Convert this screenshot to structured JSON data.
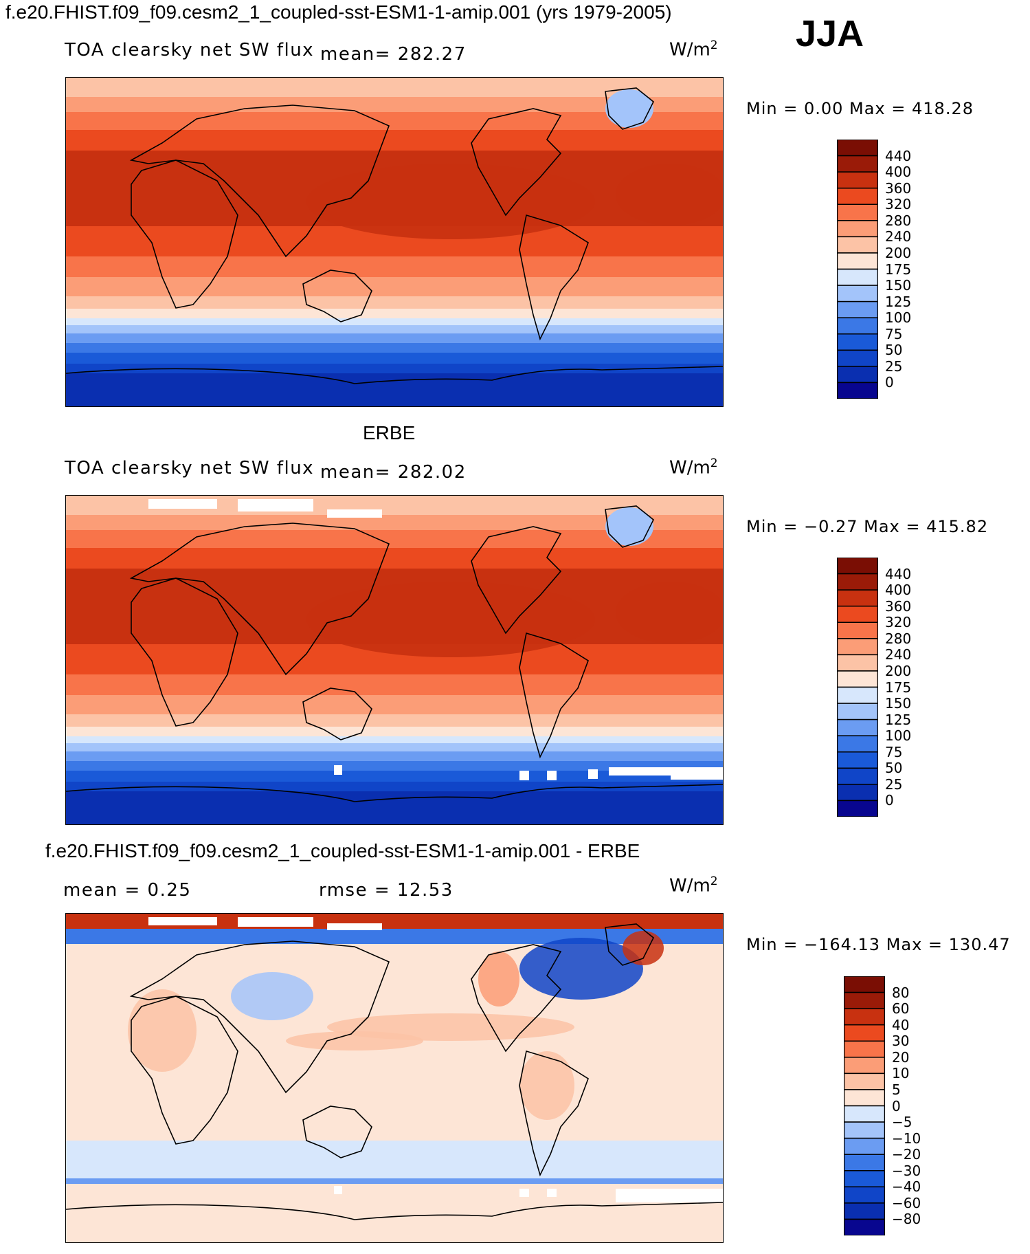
{
  "header": {
    "title": "f.e20.FHIST.f09_f09.cesm2_1_coupled-sst-ESM1-1-amip.001 (yrs 1979-2005)",
    "season": "JJA"
  },
  "panels": [
    {
      "id": "model",
      "heading": "",
      "field_label": "TOA clearsky net SW flux",
      "stat1": "mean= 282.27",
      "stat2": "",
      "units_base": "W/m",
      "units_exp": "2",
      "minmax": "Min =    0.00 Max = 418.28",
      "palette": "flux",
      "levels": [
        "440",
        "400",
        "360",
        "320",
        "280",
        "240",
        "200",
        "175",
        "150",
        "125",
        "100",
        "75",
        "50",
        "25",
        "0"
      ]
    },
    {
      "id": "obs",
      "heading": "ERBE",
      "field_label": "TOA clearsky net SW flux",
      "stat1": "mean= 282.02",
      "stat2": "",
      "units_base": "W/m",
      "units_exp": "2",
      "minmax": "Min =  −0.27 Max = 415.82",
      "palette": "flux",
      "levels": [
        "440",
        "400",
        "360",
        "320",
        "280",
        "240",
        "200",
        "175",
        "150",
        "125",
        "100",
        "75",
        "50",
        "25",
        "0"
      ]
    },
    {
      "id": "diff",
      "heading": "f.e20.FHIST.f09_f09.cesm2_1_coupled-sst-ESM1-1-amip.001 - ERBE",
      "field_label": "",
      "stat1": "mean =    0.25",
      "stat2": "rmse =   12.53",
      "units_base": "W/m",
      "units_exp": "2",
      "minmax": "Min = −164.13 Max = 130.47",
      "palette": "diff",
      "levels": [
        "80",
        "60",
        "40",
        "30",
        "20",
        "10",
        "5",
        "0",
        "−5",
        "−10",
        "−20",
        "−30",
        "−40",
        "−60",
        "−80"
      ]
    }
  ],
  "colors": {
    "flux_scale": [
      "#08068f",
      "#0a2fb0",
      "#1045c8",
      "#1a5ad8",
      "#3b78e6",
      "#6b9cf2",
      "#a3c4fa",
      "#d7e7fc",
      "#fde5d6",
      "#fcc3a6",
      "#fb9d77",
      "#f8744a",
      "#eb4a1f",
      "#c83110",
      "#9a1b08",
      "#7a0e04"
    ],
    "diff_scale": [
      "#08068f",
      "#0a2fb0",
      "#1045c8",
      "#1a5ad8",
      "#3b78e6",
      "#6b9cf2",
      "#a3c4fa",
      "#d7e7fc",
      "#fde5d6",
      "#fcc3a6",
      "#fb9d77",
      "#f8744a",
      "#eb4a1f",
      "#c83110",
      "#9a1b08",
      "#7a0e04"
    ],
    "coastline": "#000000",
    "missing": "#ffffff"
  }
}
